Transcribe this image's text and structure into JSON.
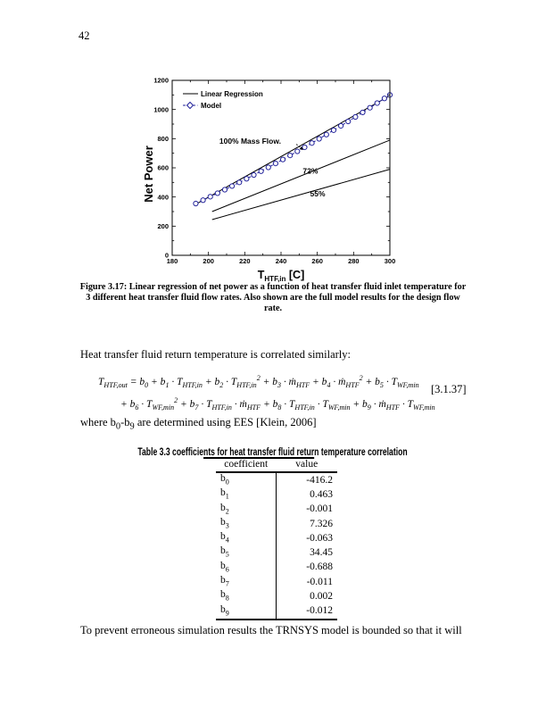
{
  "page": {
    "number": "42",
    "paragraph1": "Heat transfer fluid return temperature is correlated similarly:",
    "where_line_html": "where b<sub>0</sub>-b<sub>9</sub> are determined using EES [Klein, 2006]",
    "closing_paragraph": "To prevent erroneous simulation results the TRNSYS model is bounded so that it will"
  },
  "equation": {
    "line1_html": "T<sub>HTF,out</sub> = b<sub>0</sub> + b<sub>1</sub> · T<sub>HTF,in</sub> + b<sub>2</sub> · T<sub>HTF,in</sub><sup>2</sup> + b<sub>3</sub> · ṁ<sub>HTF</sub> + b<sub>4</sub> · ṁ<sub>HTF</sub><sup>2</sup> + b<sub>5</sub> · T<sub>WF,min</sub>",
    "line2_html": "+ b<sub>6</sub> · T<sub>WF,min</sub><sup>2</sup> + b<sub>7</sub> · T<sub>HTF,in</sub> · ṁ<sub>HTF</sub> + b<sub>8</sub> · T<sub>HTF,in</sub> · T<sub>WF,min</sub> + b<sub>9</sub> · ṁ<sub>HTF</sub> · T<sub>WF,min</sub>",
    "number": "[3.1.37]"
  },
  "figure": {
    "caption_lines": [
      "Figure 3.17:  Linear regression of net power as a function of heat transfer fluid inlet temperature for",
      "3 different heat transfer fluid flow rates.  Also shown are the full model results for the design flow",
      "rate."
    ]
  },
  "table": {
    "title_pre": "Table 3.3 coefficie",
    "title_underlined": "nts for heat transfer fluid retur",
    "title_post": "n temperature correlation",
    "col_headers": [
      "coefficient",
      "value"
    ],
    "rows": [
      {
        "coef": "b",
        "sub": "0",
        "value": "-416.2"
      },
      {
        "coef": "b",
        "sub": "1",
        "value": "0.463"
      },
      {
        "coef": "b",
        "sub": "2",
        "value": "-0.001"
      },
      {
        "coef": "b",
        "sub": "3",
        "value": "7.326"
      },
      {
        "coef": "b",
        "sub": "4",
        "value": "-0.063"
      },
      {
        "coef": "b",
        "sub": "5",
        "value": "34.45"
      },
      {
        "coef": "b",
        "sub": "6",
        "value": "-0.688"
      },
      {
        "coef": "b",
        "sub": "7",
        "value": "-0.011"
      },
      {
        "coef": "b",
        "sub": "8",
        "value": "0.002"
      },
      {
        "coef": "b",
        "sub": "9",
        "value": "-0.012"
      }
    ]
  },
  "chart_data": {
    "type": "line",
    "title": "",
    "xlabel_main": "T",
    "xlabel_sub": "HTF,in",
    "xlabel_unit": " [C]",
    "ylabel": "Net Power",
    "xlim": [
      180,
      300
    ],
    "ylim": [
      0,
      1200
    ],
    "xticks": [
      180,
      200,
      220,
      240,
      260,
      280,
      300
    ],
    "yticks": [
      0,
      200,
      400,
      600,
      800,
      1000,
      1200
    ],
    "x_minor_step": 10,
    "y_minor_step": 100,
    "legend_position": "top-left-inside",
    "grid": false,
    "model_color": "#22229a",
    "line_color": "#000000",
    "series": [
      {
        "name": "Linear Regression",
        "legend": true,
        "color": "#000000",
        "dash": "",
        "marker": "none",
        "points": [
          [
            193,
            350
          ],
          [
            300,
            1095
          ]
        ]
      },
      {
        "name": "72% mass flow regression",
        "legend": false,
        "color": "#000000",
        "dash": "",
        "marker": "none",
        "points": [
          [
            202,
            300
          ],
          [
            300,
            790
          ]
        ]
      },
      {
        "name": "55% mass flow regression",
        "legend": false,
        "color": "#000000",
        "dash": "",
        "marker": "none",
        "points": [
          [
            202,
            245
          ],
          [
            300,
            590
          ]
        ]
      },
      {
        "name": "Model",
        "legend": true,
        "color": "#22229a",
        "dash": "3 2.5",
        "marker": "circle",
        "points": [
          [
            193,
            355
          ],
          [
            197,
            378
          ],
          [
            201,
            402
          ],
          [
            205,
            426
          ],
          [
            209,
            450
          ],
          [
            213,
            475
          ],
          [
            217,
            500
          ],
          [
            221,
            525
          ],
          [
            225,
            551
          ],
          [
            229,
            577
          ],
          [
            233,
            603
          ],
          [
            237,
            630
          ],
          [
            241,
            657
          ],
          [
            245,
            685
          ],
          [
            249,
            713
          ],
          [
            253,
            741
          ],
          [
            257,
            770
          ],
          [
            261,
            799
          ],
          [
            265,
            828
          ],
          [
            269,
            858
          ],
          [
            273,
            888
          ],
          [
            277,
            918
          ],
          [
            281,
            949
          ],
          [
            285,
            980
          ],
          [
            289,
            1012
          ],
          [
            293,
            1044
          ],
          [
            297,
            1076
          ],
          [
            300,
            1100
          ]
        ]
      }
    ],
    "annotations": [
      {
        "text": "100% Mass Flow.",
        "x": 206,
        "y": 765,
        "arrow": [
          248.4,
          762,
          252.3,
          722
        ]
      },
      {
        "text": "72%",
        "x": 252,
        "y": 560
      },
      {
        "text": "55%",
        "x": 256,
        "y": 405
      }
    ]
  }
}
